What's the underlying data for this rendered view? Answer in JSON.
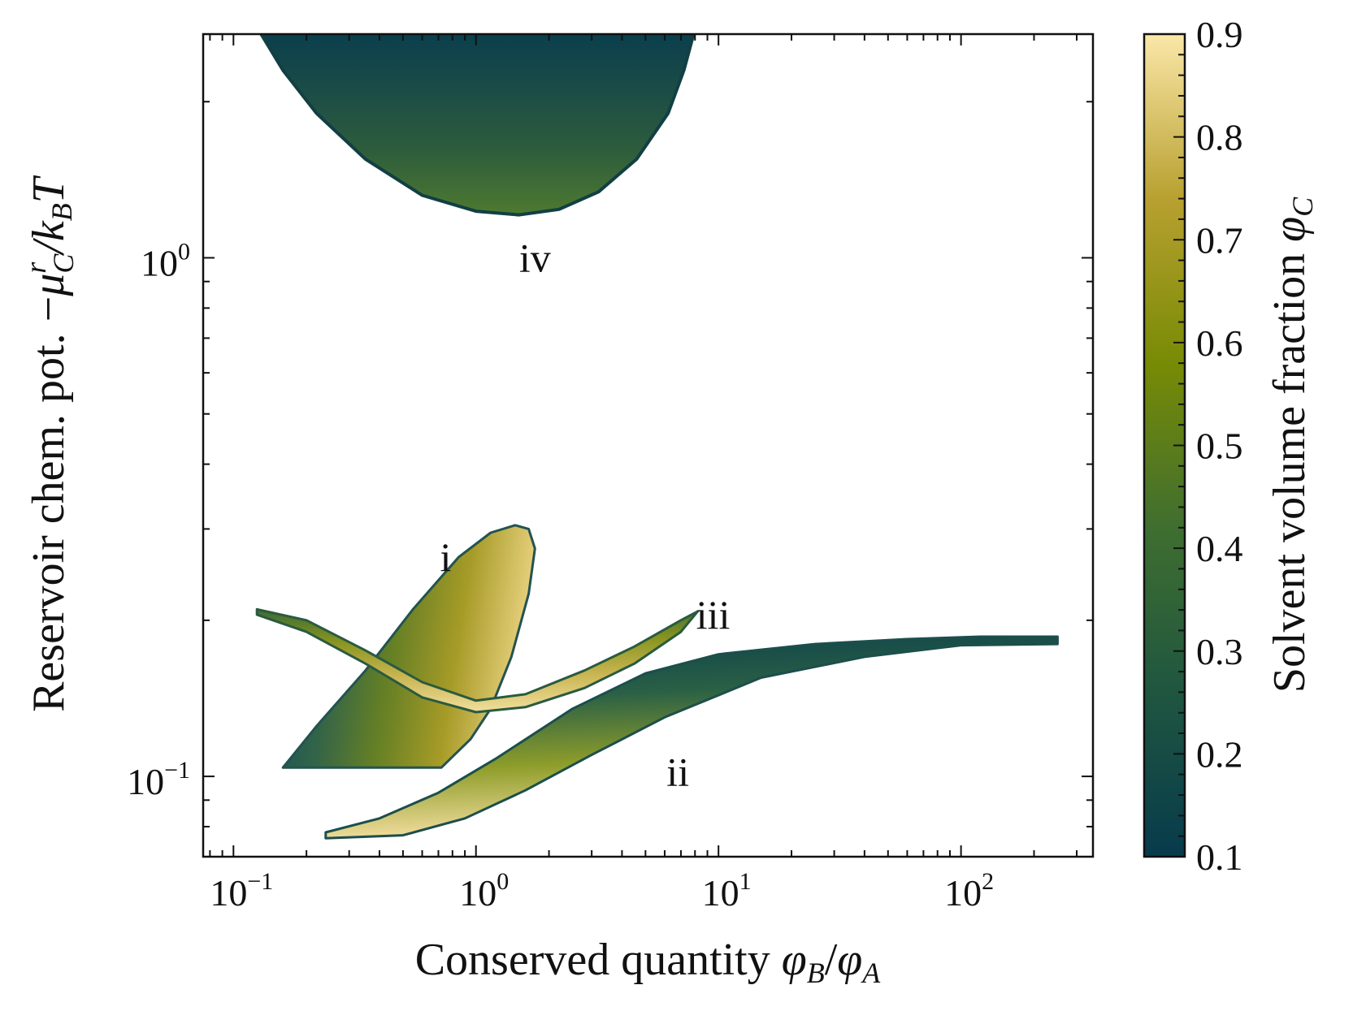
{
  "chart_data": {
    "type": "scatter",
    "description_note": "Phase-diagram style regions in (phi_B/phi_A, -mu_C^r/k_B T) space, colored by solvent volume fraction phi_C.",
    "x_axis": {
      "scale": "log",
      "range": [
        0.075,
        350
      ],
      "tick_labels": [
        {
          "value": 0.1,
          "base": "10",
          "exp": "−1"
        },
        {
          "value": 1,
          "base": "10",
          "exp": "0"
        },
        {
          "value": 10,
          "base": "10",
          "exp": "1"
        },
        {
          "value": 100,
          "base": "10",
          "exp": "2"
        }
      ]
    },
    "y_axis": {
      "scale": "log",
      "range": [
        0.07,
        2.7
      ],
      "tick_labels": [
        {
          "value": 0.1,
          "base": "10",
          "exp": "−1"
        },
        {
          "value": 1,
          "base": "10",
          "exp": "0"
        }
      ]
    },
    "xlabel": {
      "main": "Conserved quantity ",
      "var": "φ",
      "sub1": "B",
      "slash": "/",
      "var2": "φ",
      "sub2": "A"
    },
    "ylabel": {
      "main": "Reservoir chem. pot. −",
      "var": "μ",
      "sup": "r",
      "sub": "C",
      "rest": "/k",
      "subB": "B",
      "T": "T"
    },
    "colorbar": {
      "label_main": "Solvent volume fraction ",
      "label_var": "φ",
      "label_sub": "C",
      "range": [
        0.1,
        0.9
      ],
      "tick_labels": [
        "0.1",
        "0.2",
        "0.3",
        "0.4",
        "0.5",
        "0.6",
        "0.7",
        "0.8",
        "0.9"
      ],
      "colors": [
        "#073b4c",
        "#1f5640",
        "#3f6e30",
        "#788b05",
        "#b8a030",
        "#fbe7a8"
      ]
    },
    "regions": [
      {
        "name": "i",
        "label": "i",
        "label_pos": [
          0.75,
          0.265
        ],
        "phi_c_range": [
          0.1,
          0.85
        ],
        "outline": [
          [
            0.16,
            0.104
          ],
          [
            0.22,
            0.125
          ],
          [
            0.35,
            0.16
          ],
          [
            0.55,
            0.21
          ],
          [
            0.85,
            0.265
          ],
          [
            1.15,
            0.295
          ],
          [
            1.45,
            0.305
          ],
          [
            1.65,
            0.3
          ],
          [
            1.75,
            0.275
          ],
          [
            1.65,
            0.225
          ],
          [
            1.4,
            0.17
          ],
          [
            1.15,
            0.135
          ],
          [
            0.95,
            0.118
          ],
          [
            0.72,
            0.104
          ]
        ]
      },
      {
        "name": "ii",
        "label": "ii",
        "label_pos": [
          6.8,
          0.102
        ],
        "phi_c_range": [
          0.1,
          0.85
        ],
        "outline": [
          [
            0.24,
            0.078
          ],
          [
            0.4,
            0.083
          ],
          [
            0.7,
            0.093
          ],
          [
            1.2,
            0.108
          ],
          [
            2.5,
            0.135
          ],
          [
            5,
            0.158
          ],
          [
            10,
            0.172
          ],
          [
            25,
            0.18
          ],
          [
            60,
            0.184
          ],
          [
            120,
            0.186
          ],
          [
            250,
            0.186
          ],
          [
            250,
            0.18
          ],
          [
            100,
            0.179
          ],
          [
            40,
            0.17
          ],
          [
            15,
            0.155
          ],
          [
            6,
            0.13
          ],
          [
            3,
            0.11
          ],
          [
            1.6,
            0.094
          ],
          [
            0.9,
            0.083
          ],
          [
            0.5,
            0.077
          ],
          [
            0.24,
            0.076
          ]
        ]
      },
      {
        "name": "iii",
        "label": "iii",
        "label_pos": [
          9.5,
          0.205
        ],
        "phi_c_range": [
          0.1,
          0.85
        ],
        "outline": [
          [
            0.125,
            0.21
          ],
          [
            0.2,
            0.2
          ],
          [
            0.35,
            0.175
          ],
          [
            0.6,
            0.152
          ],
          [
            1,
            0.14
          ],
          [
            1.6,
            0.144
          ],
          [
            2.8,
            0.16
          ],
          [
            4.5,
            0.178
          ],
          [
            7,
            0.2
          ],
          [
            8.2,
            0.208
          ],
          [
            7,
            0.19
          ],
          [
            4.5,
            0.165
          ],
          [
            2.8,
            0.148
          ],
          [
            1.6,
            0.136
          ],
          [
            1,
            0.133
          ],
          [
            0.6,
            0.142
          ],
          [
            0.35,
            0.165
          ],
          [
            0.2,
            0.19
          ],
          [
            0.125,
            0.205
          ]
        ]
      },
      {
        "name": "iv",
        "label": "iv",
        "label_pos": [
          1.75,
          1.0
        ],
        "phi_c_range": [
          0.1,
          0.4
        ],
        "outline": [
          [
            0.13,
            2.7
          ],
          [
            0.16,
            2.3
          ],
          [
            0.22,
            1.9
          ],
          [
            0.35,
            1.55
          ],
          [
            0.6,
            1.32
          ],
          [
            1,
            1.23
          ],
          [
            1.5,
            1.21
          ],
          [
            2.2,
            1.24
          ],
          [
            3.2,
            1.34
          ],
          [
            4.6,
            1.55
          ],
          [
            6.2,
            1.9
          ],
          [
            7.2,
            2.3
          ],
          [
            7.9,
            2.7
          ]
        ]
      }
    ]
  }
}
